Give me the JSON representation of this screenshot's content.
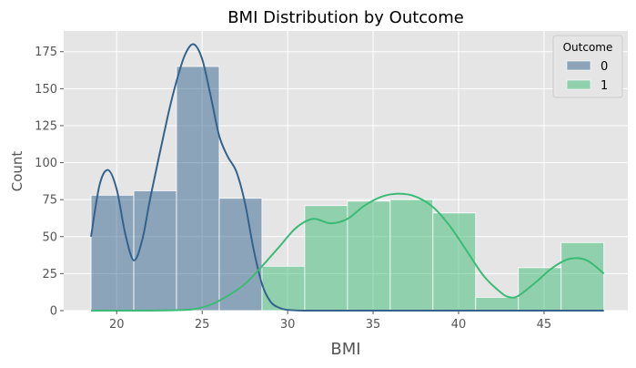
{
  "chart_data": {
    "type": "bar",
    "title": "BMI Distribution by Outcome",
    "xlabel": "BMI",
    "ylabel": "Count",
    "xlim": [
      16.9,
      49.9
    ],
    "ylim": [
      0,
      189
    ],
    "xticks": [
      20,
      25,
      30,
      35,
      40,
      45
    ],
    "yticks": [
      0,
      25,
      50,
      75,
      100,
      125,
      150,
      175
    ],
    "grid": true,
    "legend": {
      "title": "Outcome",
      "placement": "top-right"
    },
    "series": [
      {
        "name": "0",
        "color": "#33638d",
        "bins": [
          {
            "x0": 18.5,
            "x1": 21.0,
            "count": 78
          },
          {
            "x0": 21.0,
            "x1": 23.5,
            "count": 81
          },
          {
            "x0": 23.5,
            "x1": 26.0,
            "count": 165
          },
          {
            "x0": 26.0,
            "x1": 28.5,
            "count": 76
          },
          {
            "x0": 28.5,
            "x1": 31.0,
            "count": 0
          },
          {
            "x0": 31.0,
            "x1": 33.5,
            "count": 0
          },
          {
            "x0": 33.5,
            "x1": 36.0,
            "count": 0
          },
          {
            "x0": 36.0,
            "x1": 38.5,
            "count": 0
          },
          {
            "x0": 38.5,
            "x1": 41.0,
            "count": 0
          },
          {
            "x0": 41.0,
            "x1": 43.5,
            "count": 0
          },
          {
            "x0": 43.5,
            "x1": 46.0,
            "count": 0
          },
          {
            "x0": 46.0,
            "x1": 48.5,
            "count": 0
          }
        ],
        "kde": [
          [
            18.5,
            50
          ],
          [
            19.0,
            85
          ],
          [
            19.5,
            95
          ],
          [
            20.0,
            82
          ],
          [
            20.5,
            52
          ],
          [
            21.0,
            34
          ],
          [
            21.5,
            48
          ],
          [
            22.0,
            78
          ],
          [
            23.0,
            132
          ],
          [
            23.5,
            155
          ],
          [
            24.0,
            173
          ],
          [
            24.5,
            180
          ],
          [
            25.0,
            170
          ],
          [
            25.5,
            145
          ],
          [
            26.0,
            118
          ],
          [
            26.5,
            104
          ],
          [
            27.0,
            94
          ],
          [
            27.5,
            73
          ],
          [
            28.0,
            42
          ],
          [
            28.5,
            18
          ],
          [
            29.0,
            6
          ],
          [
            29.5,
            2
          ],
          [
            30.0,
            0.5
          ],
          [
            31.0,
            0
          ],
          [
            33.0,
            0
          ],
          [
            35.0,
            0
          ],
          [
            37.0,
            0
          ],
          [
            39.0,
            0
          ],
          [
            41.0,
            0
          ],
          [
            43.0,
            0
          ],
          [
            45.0,
            0
          ],
          [
            48.5,
            0
          ]
        ]
      },
      {
        "name": "1",
        "color": "#3bbb75",
        "bins": [
          {
            "x0": 18.5,
            "x1": 21.0,
            "count": 0
          },
          {
            "x0": 21.0,
            "x1": 23.5,
            "count": 0
          },
          {
            "x0": 23.5,
            "x1": 26.0,
            "count": 0
          },
          {
            "x0": 26.0,
            "x1": 28.5,
            "count": 0
          },
          {
            "x0": 28.5,
            "x1": 31.0,
            "count": 30
          },
          {
            "x0": 31.0,
            "x1": 33.5,
            "count": 71
          },
          {
            "x0": 33.5,
            "x1": 36.0,
            "count": 74
          },
          {
            "x0": 36.0,
            "x1": 38.5,
            "count": 75
          },
          {
            "x0": 38.5,
            "x1": 41.0,
            "count": 66
          },
          {
            "x0": 41.0,
            "x1": 43.5,
            "count": 9
          },
          {
            "x0": 43.5,
            "x1": 46.0,
            "count": 29
          },
          {
            "x0": 46.0,
            "x1": 48.5,
            "count": 46
          }
        ],
        "kde": [
          [
            18.5,
            0
          ],
          [
            20.0,
            0
          ],
          [
            22.0,
            0
          ],
          [
            23.5,
            0.3
          ],
          [
            24.5,
            1
          ],
          [
            25.5,
            4
          ],
          [
            26.5,
            10
          ],
          [
            27.5,
            18
          ],
          [
            28.5,
            30
          ],
          [
            29.5,
            43
          ],
          [
            30.5,
            56
          ],
          [
            31.5,
            62
          ],
          [
            32.5,
            59
          ],
          [
            33.5,
            62
          ],
          [
            34.5,
            71
          ],
          [
            35.5,
            77
          ],
          [
            36.5,
            79
          ],
          [
            37.5,
            77
          ],
          [
            38.5,
            70
          ],
          [
            39.5,
            57
          ],
          [
            40.5,
            40
          ],
          [
            41.5,
            23
          ],
          [
            42.5,
            12
          ],
          [
            43.0,
            9
          ],
          [
            43.5,
            10
          ],
          [
            44.5,
            19
          ],
          [
            45.5,
            29
          ],
          [
            46.5,
            35
          ],
          [
            47.5,
            34
          ],
          [
            48.5,
            25
          ]
        ]
      }
    ]
  }
}
